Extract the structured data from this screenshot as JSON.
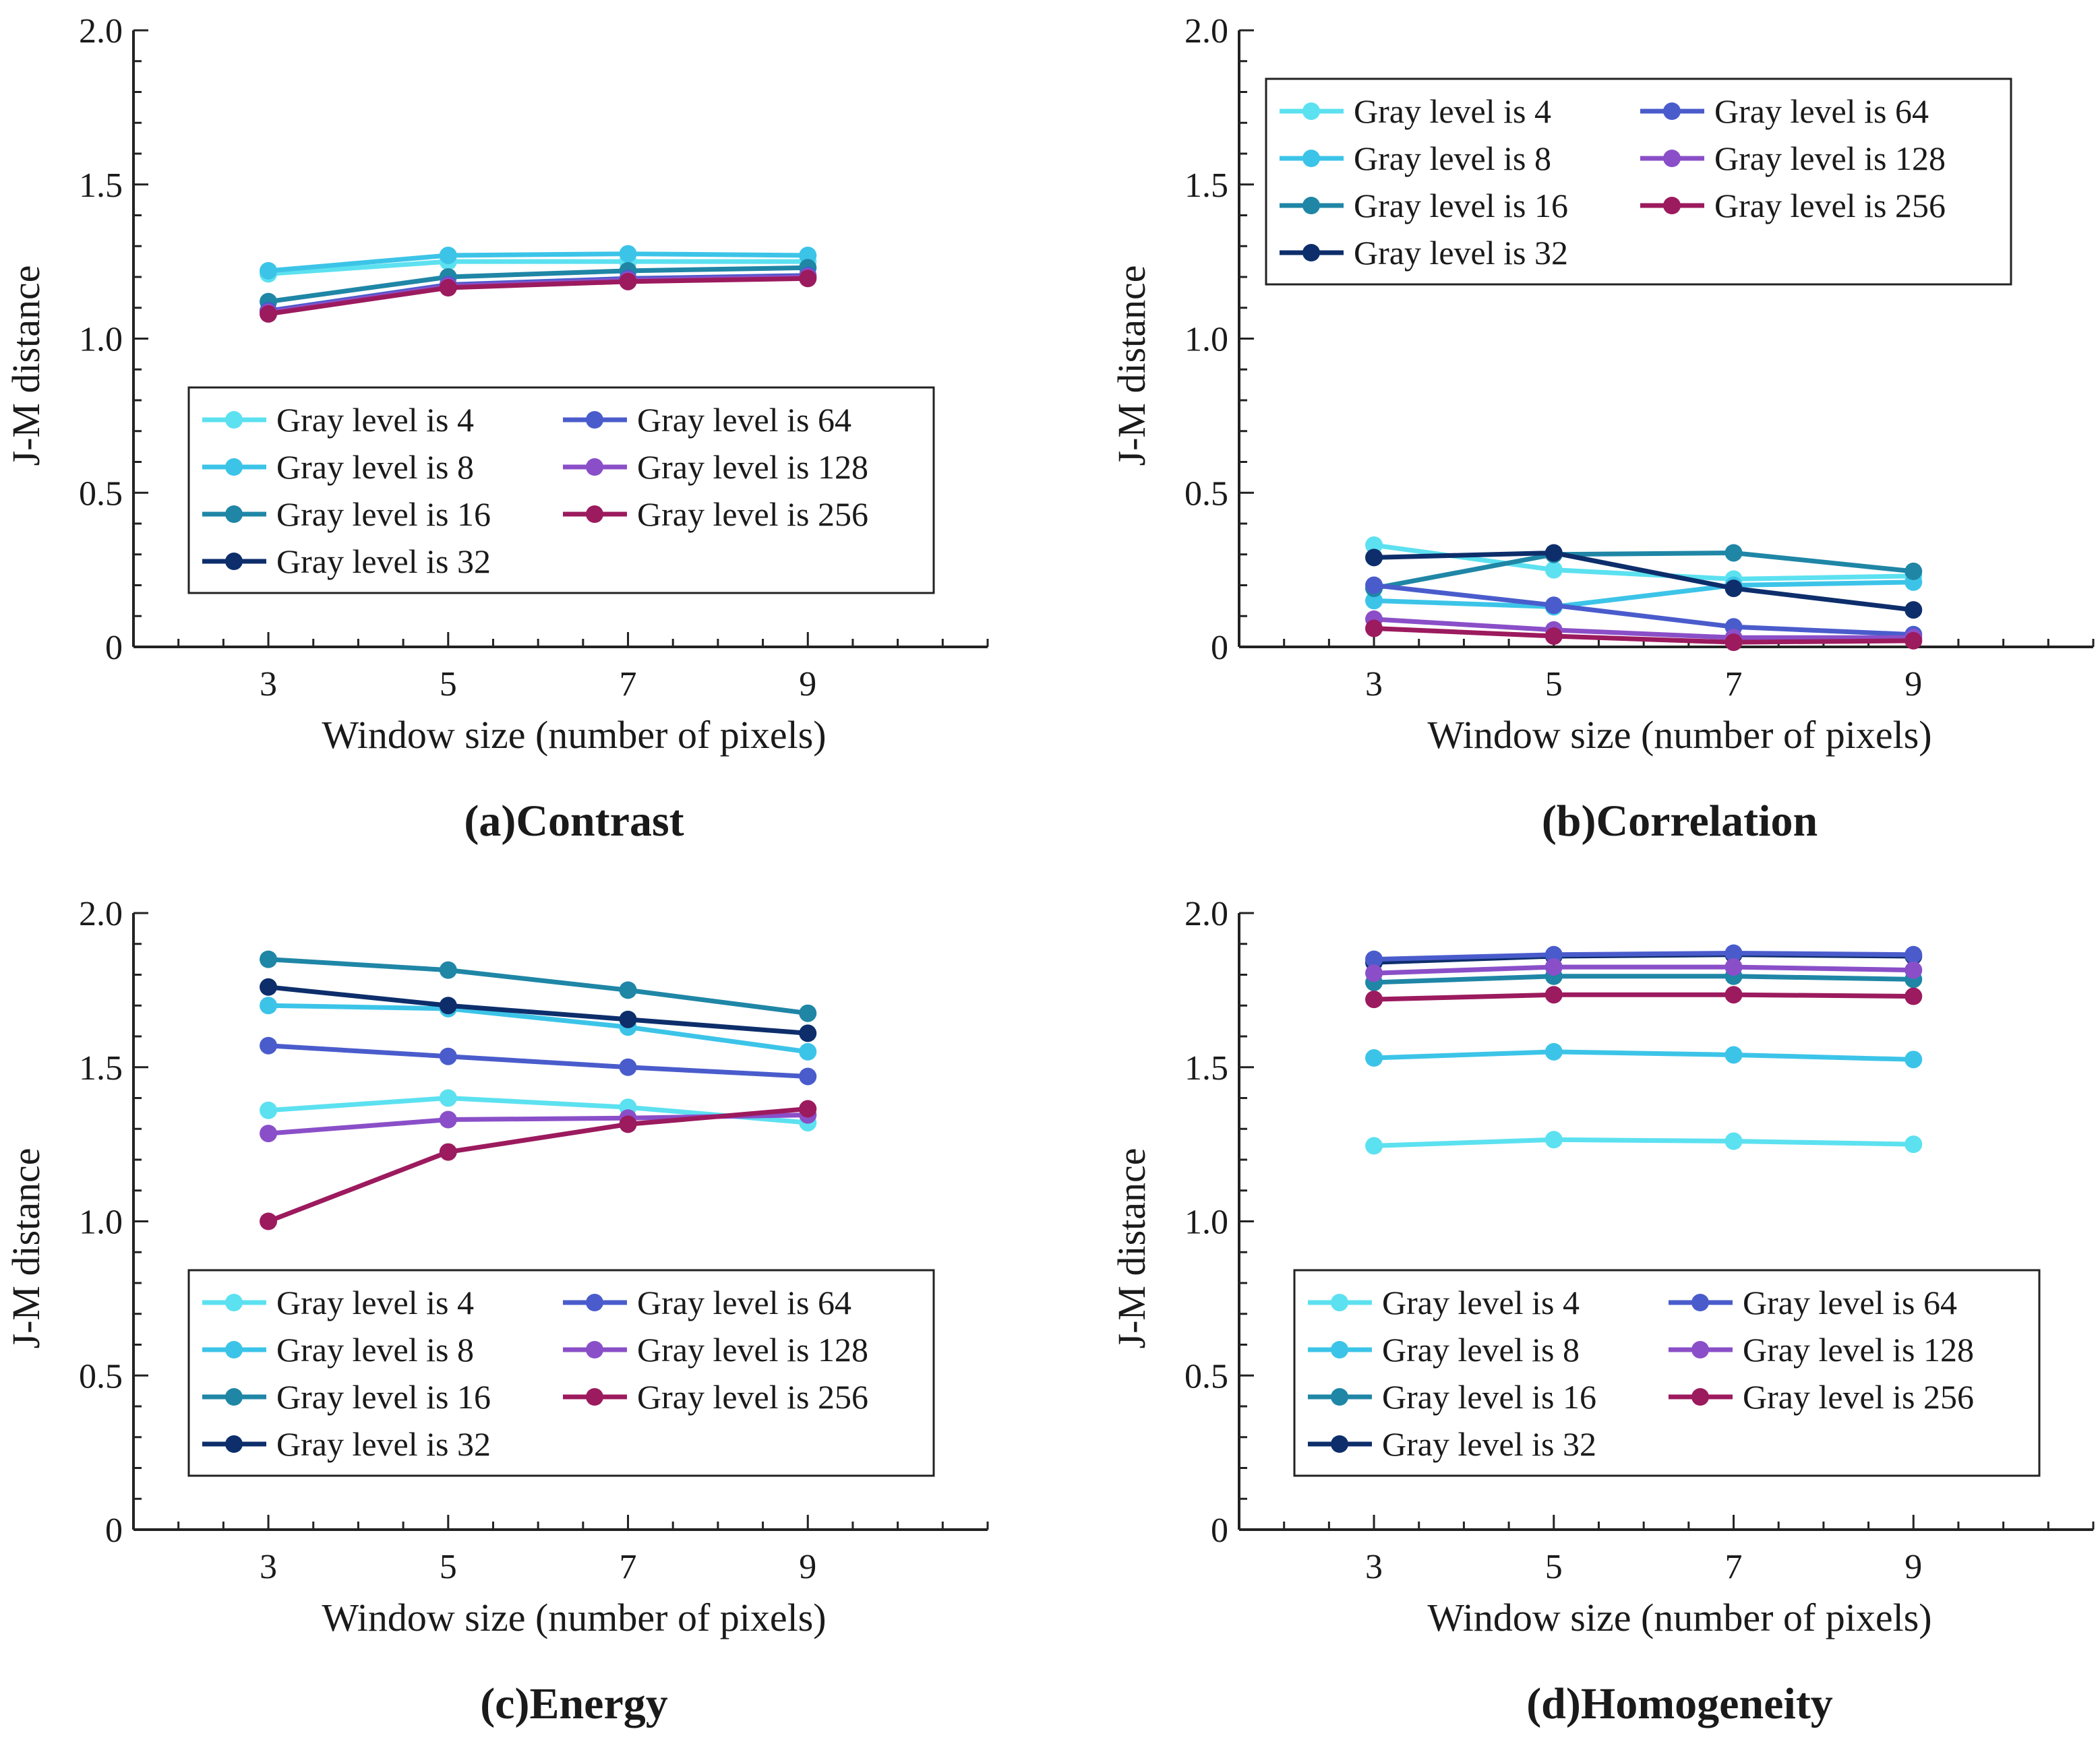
{
  "chart_data": [
    {
      "type": "line",
      "caption": "(a)Contrast",
      "xlabel": "Window size (number of pixels)",
      "ylabel": "J-M distance",
      "x": [
        3,
        5,
        7,
        9
      ],
      "xlim": [
        1.5,
        11
      ],
      "ylim": [
        0,
        2.0
      ],
      "yticks": [
        "0",
        "0.5",
        "1.0",
        "1.5",
        "2.0"
      ],
      "legend_position": "lower-center",
      "series": [
        {
          "name": "Gray level is 4",
          "color": "#5ce1f0",
          "values": [
            1.21,
            1.25,
            1.25,
            1.25
          ]
        },
        {
          "name": "Gray level is 8",
          "color": "#3cc4e8",
          "values": [
            1.22,
            1.27,
            1.275,
            1.27
          ]
        },
        {
          "name": "Gray level is 16",
          "color": "#1f86a6",
          "values": [
            1.12,
            1.2,
            1.22,
            1.23
          ]
        },
        {
          "name": "Gray level is 32",
          "color": "#0d2e6b",
          "values": [
            1.09,
            1.17,
            1.19,
            1.2
          ]
        },
        {
          "name": "Gray level is 64",
          "color": "#4a5ccc",
          "values": [
            1.09,
            1.175,
            1.195,
            1.205
          ]
        },
        {
          "name": "Gray level is 128",
          "color": "#8a4fc8",
          "values": [
            1.085,
            1.17,
            1.19,
            1.2
          ]
        },
        {
          "name": "Gray level is 256",
          "color": "#9c1a5e",
          "values": [
            1.08,
            1.165,
            1.185,
            1.195
          ]
        }
      ]
    },
    {
      "type": "line",
      "caption": "(b)Correlation",
      "xlabel": "Window size (number of pixels)",
      "ylabel": "J-M distance",
      "x": [
        3,
        5,
        7,
        9
      ],
      "xlim": [
        1.5,
        11
      ],
      "ylim": [
        0,
        2.0
      ],
      "yticks": [
        "0",
        "0.5",
        "1.0",
        "1.5",
        "2.0"
      ],
      "legend_position": "upper-left",
      "series": [
        {
          "name": "Gray level is 4",
          "color": "#5ce1f0",
          "values": [
            0.33,
            0.25,
            0.22,
            0.23
          ]
        },
        {
          "name": "Gray level is 8",
          "color": "#3cc4e8",
          "values": [
            0.15,
            0.13,
            0.2,
            0.21
          ]
        },
        {
          "name": "Gray level is 16",
          "color": "#1f86a6",
          "values": [
            0.19,
            0.3,
            0.305,
            0.245
          ]
        },
        {
          "name": "Gray level is 32",
          "color": "#0d2e6b",
          "values": [
            0.29,
            0.305,
            0.19,
            0.12
          ]
        },
        {
          "name": "Gray level is 64",
          "color": "#4a5ccc",
          "values": [
            0.2,
            0.135,
            0.065,
            0.04
          ]
        },
        {
          "name": "Gray level is 128",
          "color": "#8a4fc8",
          "values": [
            0.09,
            0.055,
            0.03,
            0.03
          ]
        },
        {
          "name": "Gray level is 256",
          "color": "#9c1a5e",
          "values": [
            0.06,
            0.035,
            0.015,
            0.02
          ]
        }
      ]
    },
    {
      "type": "line",
      "caption": "(c)Energy",
      "xlabel": "Window size (number of pixels)",
      "ylabel": "J-M distance",
      "x": [
        3,
        5,
        7,
        9
      ],
      "xlim": [
        1.5,
        11
      ],
      "ylim": [
        0,
        2.0
      ],
      "yticks": [
        "0",
        "0.5",
        "1.0",
        "1.5",
        "2.0"
      ],
      "legend_position": "lower-center",
      "series": [
        {
          "name": "Gray level is 4",
          "color": "#5ce1f0",
          "values": [
            1.36,
            1.4,
            1.37,
            1.32
          ]
        },
        {
          "name": "Gray level is 8",
          "color": "#3cc4e8",
          "values": [
            1.7,
            1.69,
            1.63,
            1.55
          ]
        },
        {
          "name": "Gray level is 16",
          "color": "#1f86a6",
          "values": [
            1.85,
            1.815,
            1.75,
            1.675
          ]
        },
        {
          "name": "Gray level is 32",
          "color": "#0d2e6b",
          "values": [
            1.76,
            1.7,
            1.655,
            1.61
          ]
        },
        {
          "name": "Gray level is 64",
          "color": "#4a5ccc",
          "values": [
            1.57,
            1.535,
            1.5,
            1.47
          ]
        },
        {
          "name": "Gray level is 128",
          "color": "#8a4fc8",
          "values": [
            1.285,
            1.33,
            1.335,
            1.345
          ]
        },
        {
          "name": "Gray level is 256",
          "color": "#9c1a5e",
          "values": [
            1.0,
            1.225,
            1.315,
            1.365
          ]
        }
      ]
    },
    {
      "type": "line",
      "caption": "(d)Homogeneity",
      "xlabel": "Window size (number of pixels)",
      "ylabel": "J-M distance",
      "x": [
        3,
        5,
        7,
        9
      ],
      "xlim": [
        1.5,
        11
      ],
      "ylim": [
        0,
        2.0
      ],
      "yticks": [
        "0",
        "0.5",
        "1.0",
        "1.5",
        "2.0"
      ],
      "legend_position": "lower-center",
      "series": [
        {
          "name": "Gray level is 4",
          "color": "#5ce1f0",
          "values": [
            1.245,
            1.265,
            1.26,
            1.25
          ]
        },
        {
          "name": "Gray level is 8",
          "color": "#3cc4e8",
          "values": [
            1.53,
            1.55,
            1.54,
            1.525
          ]
        },
        {
          "name": "Gray level is 16",
          "color": "#1f86a6",
          "values": [
            1.775,
            1.795,
            1.795,
            1.785
          ]
        },
        {
          "name": "Gray level is 32",
          "color": "#0d2e6b",
          "values": [
            1.84,
            1.86,
            1.865,
            1.86
          ]
        },
        {
          "name": "Gray level is 64",
          "color": "#4a5ccc",
          "values": [
            1.85,
            1.865,
            1.87,
            1.865
          ]
        },
        {
          "name": "Gray level is 128",
          "color": "#8a4fc8",
          "values": [
            1.805,
            1.825,
            1.825,
            1.815
          ]
        },
        {
          "name": "Gray level is 256",
          "color": "#9c1a5e",
          "values": [
            1.72,
            1.735,
            1.735,
            1.73
          ]
        }
      ]
    }
  ]
}
